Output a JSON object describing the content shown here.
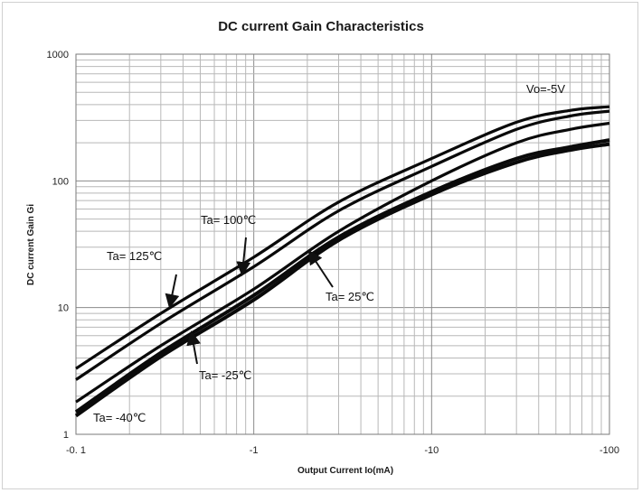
{
  "chart_data": {
    "type": "line",
    "title": "DC current Gain Characteristics",
    "xlabel": "Output Current  Io(mA)",
    "ylabel": "DC current Gain Gi",
    "x_scale": "log",
    "y_scale": "log",
    "x_axis_reversed_sign": true,
    "xlim": [
      -0.1,
      -100
    ],
    "ylim": [
      1,
      1000
    ],
    "x_tick_labels": [
      "-0. 1",
      "-1",
      "-10",
      "-100"
    ],
    "y_tick_labels": [
      "1",
      "10",
      "100",
      "1000"
    ],
    "grid": true,
    "condition_label": "Vo=-5V",
    "series": [
      {
        "name": "Ta= 125℃",
        "x": [
          -0.1,
          -0.3,
          -1,
          -3,
          -10,
          -30,
          -60,
          -100
        ],
        "values": [
          3.3,
          9,
          25,
          68,
          150,
          290,
          360,
          385
        ]
      },
      {
        "name": "Ta= 100℃",
        "x": [
          -0.1,
          -0.3,
          -1,
          -3,
          -10,
          -30,
          -60,
          -100
        ],
        "values": [
          2.7,
          7.5,
          21,
          58,
          130,
          255,
          325,
          355
        ]
      },
      {
        "name": "Ta= 25℃",
        "x": [
          -0.1,
          -0.3,
          -1,
          -3,
          -10,
          -30,
          -60,
          -100
        ],
        "values": [
          1.8,
          5,
          14,
          40,
          100,
          200,
          255,
          285
        ]
      },
      {
        "name": "Ta= -25℃",
        "x": [
          -0.1,
          -0.3,
          -1,
          -3,
          -10,
          -30,
          -60,
          -100
        ],
        "values": [
          1.5,
          4.4,
          12.5,
          36,
          82,
          150,
          185,
          210
        ]
      },
      {
        "name": "Ta= -40℃",
        "x": [
          -0.1,
          -0.3,
          -1,
          -3,
          -10,
          -30,
          -60,
          -100
        ],
        "values": [
          1.4,
          4.1,
          11.5,
          34,
          78,
          140,
          175,
          195
        ]
      }
    ]
  }
}
